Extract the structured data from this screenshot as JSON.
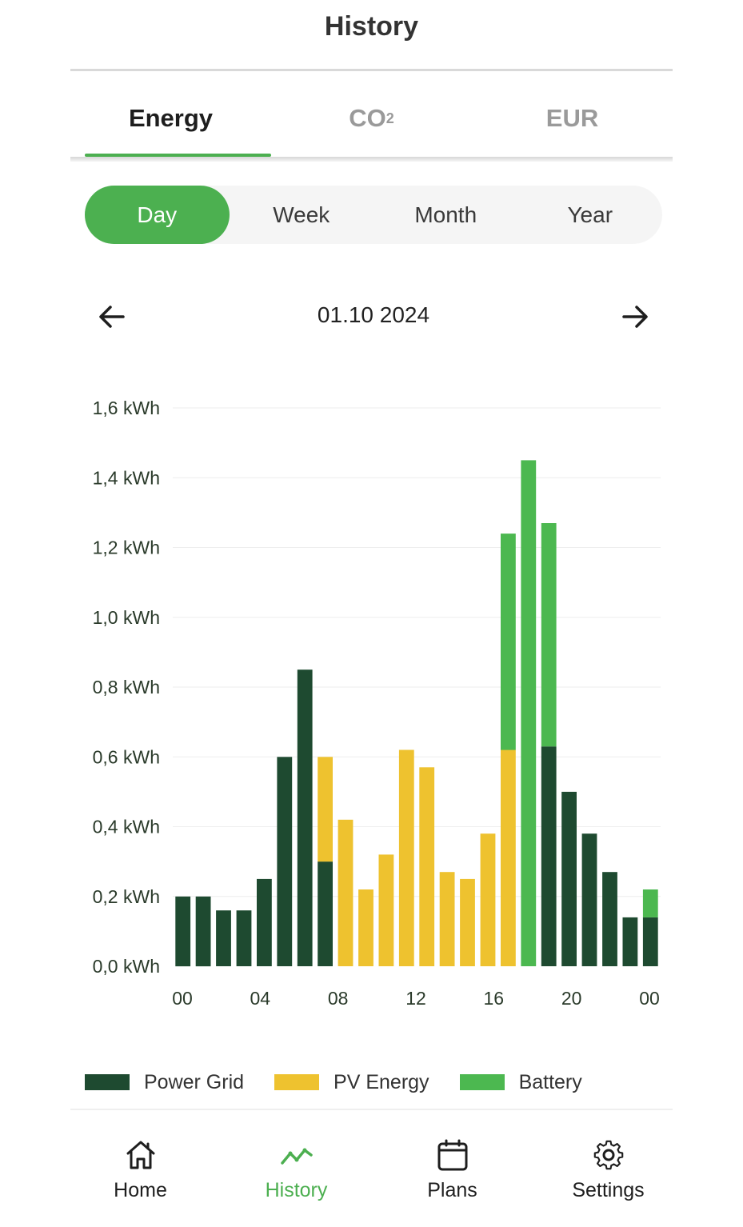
{
  "header": {
    "title": "History"
  },
  "tabs": [
    {
      "label": "Energy",
      "sub": "",
      "active": true
    },
    {
      "label": "CO",
      "sub": "2",
      "active": false
    },
    {
      "label": "EUR",
      "sub": "",
      "active": false
    }
  ],
  "periods": [
    {
      "label": "Day",
      "active": true
    },
    {
      "label": "Week",
      "active": false
    },
    {
      "label": "Month",
      "active": false
    },
    {
      "label": "Year",
      "active": false
    }
  ],
  "date_nav": {
    "date": "01.10 2024",
    "prev_icon": "arrow-left-icon",
    "next_icon": "arrow-right-icon"
  },
  "colors": {
    "power_grid": "#1e4a30",
    "pv_energy": "#eec22f",
    "battery": "#4cb850",
    "accent": "#4caf50"
  },
  "chart_data": {
    "type": "bar",
    "stacked": true,
    "categories": [
      "00",
      "01",
      "02",
      "03",
      "04",
      "05",
      "06",
      "07",
      "08",
      "09",
      "10",
      "11",
      "12",
      "13",
      "14",
      "15",
      "16",
      "17",
      "18",
      "19",
      "20",
      "21",
      "22",
      "23"
    ],
    "x_tick_labels": [
      "00",
      "04",
      "08",
      "12",
      "16",
      "20",
      "00"
    ],
    "y_tick_labels": [
      "0,0 kWh",
      "0,2 kWh",
      "0,4 kWh",
      "0,6 kWh",
      "0,8 kWh",
      "1,0 kWh",
      "1,2 kWh",
      "1,4 kWh",
      "1,6 kWh"
    ],
    "ylim": [
      0,
      1.6
    ],
    "grid": true,
    "legend_position": "bottom",
    "series": [
      {
        "name": "Power Grid",
        "color": "#1e4a30",
        "values": [
          0.2,
          0.2,
          0.16,
          0.16,
          0.25,
          0.6,
          0.85,
          0.3,
          0,
          0,
          0,
          0,
          0,
          0,
          0,
          0,
          0,
          0,
          0.63,
          0.5,
          0.38,
          0.27,
          0.14,
          0.14
        ]
      },
      {
        "name": "PV Energy",
        "color": "#eec22f",
        "values": [
          0,
          0,
          0,
          0,
          0,
          0,
          0,
          0.3,
          0.42,
          0.22,
          0.32,
          0.62,
          0.57,
          0.27,
          0.25,
          0.38,
          0.62,
          0,
          0,
          0,
          0,
          0,
          0,
          0
        ]
      },
      {
        "name": "Battery",
        "color": "#4cb850",
        "values": [
          0,
          0,
          0,
          0,
          0,
          0,
          0,
          0,
          0,
          0,
          0,
          0,
          0,
          0,
          0,
          0,
          0.62,
          1.45,
          0.64,
          0,
          0,
          0,
          0,
          0.08
        ]
      }
    ]
  },
  "legend": [
    {
      "label": "Power Grid",
      "color": "#1e4a30"
    },
    {
      "label": "PV Energy",
      "color": "#eec22f"
    },
    {
      "label": "Battery",
      "color": "#4cb850"
    }
  ],
  "bottom_nav": [
    {
      "label": "Home",
      "icon": "home-icon",
      "active": false
    },
    {
      "label": "History",
      "icon": "history-chart-icon",
      "active": true
    },
    {
      "label": "Plans",
      "icon": "calendar-icon",
      "active": false
    },
    {
      "label": "Settings",
      "icon": "gear-icon",
      "active": false
    }
  ]
}
